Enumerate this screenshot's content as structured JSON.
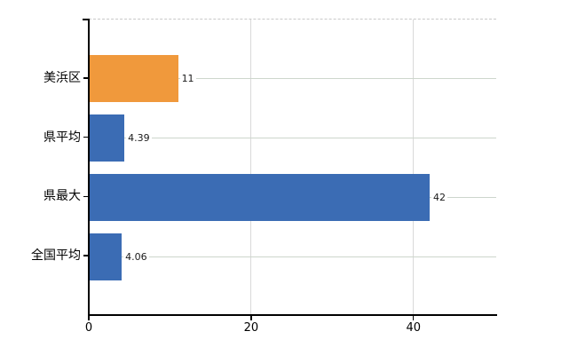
{
  "chart_data": {
    "type": "bar",
    "orientation": "horizontal",
    "title": "",
    "xlabel": "",
    "ylabel": "",
    "categories": [
      "美浜区",
      "県平均",
      "県最大",
      "全国平均"
    ],
    "values": [
      11,
      4.39,
      42,
      4.06
    ],
    "value_labels": [
      "11",
      "4.39",
      "42",
      "4.06"
    ],
    "bar_colors": [
      "#f0993c",
      "#3b6cb4",
      "#3b6cb4",
      "#3b6cb4"
    ],
    "xlim": [
      0,
      50.2
    ],
    "x_ticks": [
      0,
      20,
      40
    ],
    "x_tick_labels": [
      "0",
      "20",
      "40"
    ],
    "grid": true,
    "legend": false
  },
  "colors": {
    "bar_orange": "#f0993c",
    "bar_blue": "#3b6cb4",
    "axis": "#000000",
    "vertical_gridline": "#d9d9d9",
    "horizontal_gridline": "#cdd6cc",
    "top_border_dashed": "#c9c9c9",
    "background": "#ffffff"
  }
}
